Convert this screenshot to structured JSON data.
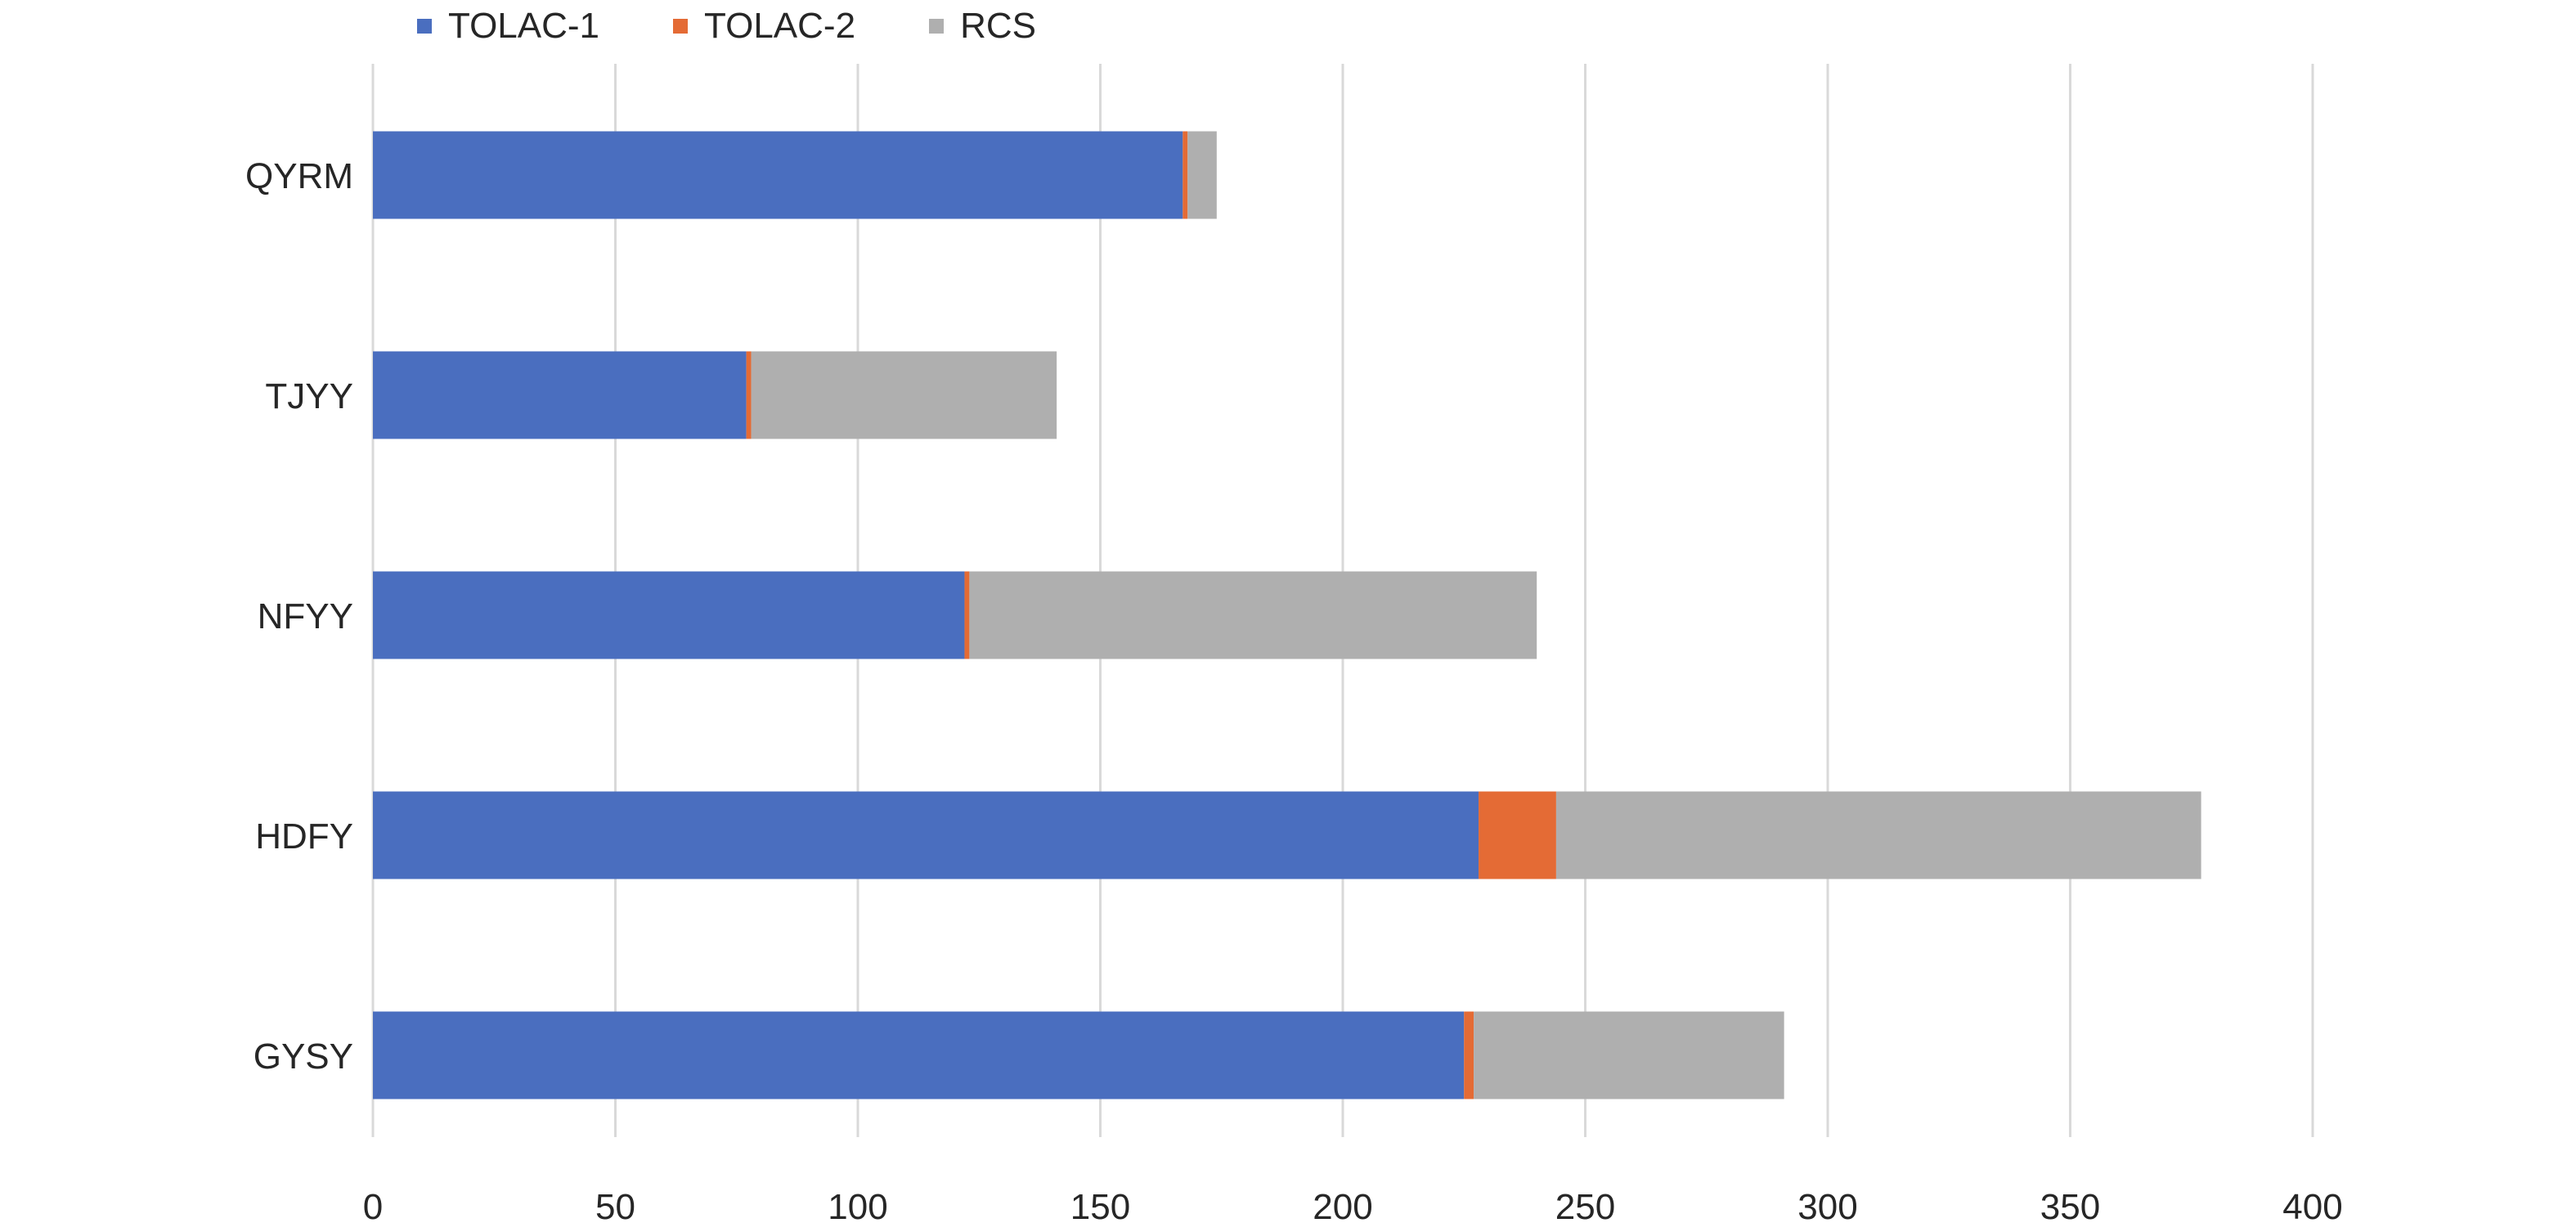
{
  "chart_data": {
    "type": "bar",
    "orientation": "horizontal",
    "stacked": true,
    "categories": [
      "QYRM",
      "TJYY",
      "NFYY",
      "HDFY",
      "GYSY"
    ],
    "series": [
      {
        "name": "TOLAC-1",
        "color": "#4a6ebf",
        "values": [
          167,
          77,
          122,
          228,
          225
        ]
      },
      {
        "name": "TOLAC-2",
        "color": "#e46b35",
        "values": [
          1,
          1,
          1,
          16,
          2
        ]
      },
      {
        "name": "RCS",
        "color": "#afafaf",
        "values": [
          6,
          63,
          117,
          133,
          64
        ]
      }
    ],
    "xlim": [
      0,
      400
    ],
    "xticks": [
      0,
      50,
      100,
      150,
      200,
      250,
      300,
      350,
      400
    ],
    "grid": "vertical",
    "legend": "top",
    "title": "",
    "xlabel": "",
    "ylabel": ""
  }
}
